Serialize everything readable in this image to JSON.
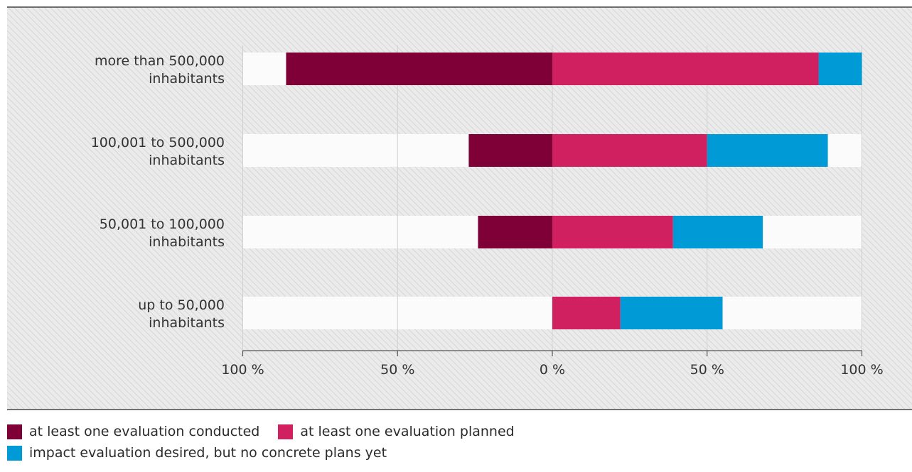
{
  "chart_data": {
    "type": "bar",
    "orientation": "horizontal-diverging",
    "categories": [
      [
        "more than 500,000",
        "inhabitants"
      ],
      [
        "100,001 to 500,000",
        "inhabitants"
      ],
      [
        "50,001 to 100,000",
        "inhabitants"
      ],
      [
        "up to 50,000",
        "inhabitants"
      ]
    ],
    "series": [
      {
        "name": "at least one evaluation conducted",
        "color": "#7f0037",
        "values": [
          86,
          27,
          24,
          0
        ],
        "direction": "left"
      },
      {
        "name": "at least one evaluation planned",
        "color": "#d0205f",
        "values": [
          86,
          50,
          39,
          22
        ],
        "direction": "right"
      },
      {
        "name": "impact evaluation desired, but no concrete plans yet",
        "color": "#009bd6",
        "values": [
          14,
          39,
          29,
          33
        ],
        "direction": "right"
      }
    ],
    "x_ticks": [
      "100 %",
      "50 %",
      "0 %",
      "50 %",
      "100 %"
    ],
    "xlim": [
      -100,
      100
    ],
    "grid": true,
    "legend_position": "bottom-left"
  }
}
